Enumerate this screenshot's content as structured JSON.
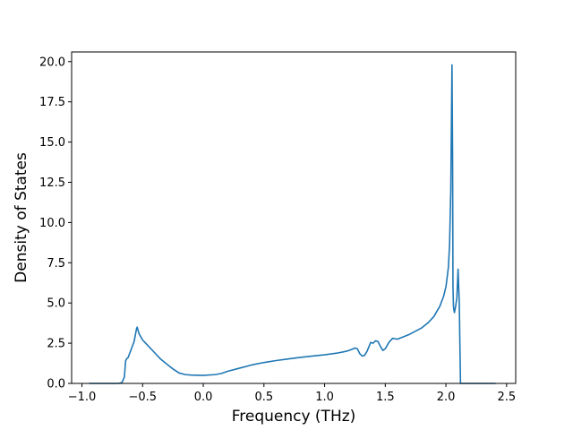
{
  "chart_data": {
    "type": "line",
    "title": "",
    "xlabel": "Frequency (THz)",
    "ylabel": "Density of States",
    "xlim": [
      -1.085,
      2.575
    ],
    "ylim": [
      0,
      20.6
    ],
    "xticks": [
      {
        "value": -1.0,
        "label": "−1.0"
      },
      {
        "value": -0.5,
        "label": "−0.5"
      },
      {
        "value": 0.0,
        "label": "0.0"
      },
      {
        "value": 0.5,
        "label": "0.5"
      },
      {
        "value": 1.0,
        "label": "1.0"
      },
      {
        "value": 1.5,
        "label": "1.5"
      },
      {
        "value": 2.0,
        "label": "2.0"
      },
      {
        "value": 2.5,
        "label": "2.5"
      }
    ],
    "yticks": [
      {
        "value": 0.0,
        "label": "0.0"
      },
      {
        "value": 2.5,
        "label": "2.5"
      },
      {
        "value": 5.0,
        "label": "5.0"
      },
      {
        "value": 7.5,
        "label": "7.5"
      },
      {
        "value": 10.0,
        "label": "10.0"
      },
      {
        "value": 12.5,
        "label": "12.5"
      },
      {
        "value": 15.0,
        "label": "15.0"
      },
      {
        "value": 17.5,
        "label": "17.5"
      },
      {
        "value": 20.0,
        "label": "20.0"
      }
    ],
    "grid": false,
    "legend": "none",
    "series": [
      {
        "color": "#1f77b4",
        "x": [
          -0.94,
          -0.7,
          -0.67,
          -0.65,
          -0.64,
          -0.63,
          -0.62,
          -0.6,
          -0.59,
          -0.57,
          -0.55,
          -0.545,
          -0.53,
          -0.5,
          -0.45,
          -0.4,
          -0.35,
          -0.3,
          -0.25,
          -0.2,
          -0.15,
          -0.1,
          0.0,
          0.1,
          0.15,
          0.2,
          0.3,
          0.4,
          0.5,
          0.6,
          0.7,
          0.8,
          0.9,
          1.0,
          1.1,
          1.18,
          1.22,
          1.25,
          1.27,
          1.29,
          1.31,
          1.33,
          1.35,
          1.38,
          1.4,
          1.42,
          1.44,
          1.46,
          1.48,
          1.5,
          1.53,
          1.56,
          1.6,
          1.7,
          1.8,
          1.85,
          1.9,
          1.95,
          1.98,
          2.0,
          2.02,
          2.03,
          2.04,
          2.05,
          2.055,
          2.058,
          2.062,
          2.065,
          2.07,
          2.08,
          2.09,
          2.1,
          2.11,
          2.12,
          2.125,
          2.13,
          2.135,
          2.14,
          2.2,
          2.3,
          2.41
        ],
        "y": [
          0.0,
          0.0,
          0.05,
          0.4,
          1.4,
          1.55,
          1.6,
          2.0,
          2.2,
          2.6,
          3.4,
          3.5,
          3.1,
          2.7,
          2.3,
          1.9,
          1.5,
          1.2,
          0.9,
          0.65,
          0.55,
          0.52,
          0.5,
          0.55,
          0.62,
          0.75,
          0.95,
          1.15,
          1.3,
          1.42,
          1.52,
          1.62,
          1.7,
          1.78,
          1.88,
          2.0,
          2.1,
          2.2,
          2.15,
          1.85,
          1.7,
          1.75,
          2.0,
          2.55,
          2.5,
          2.65,
          2.6,
          2.3,
          2.05,
          2.15,
          2.55,
          2.8,
          2.75,
          3.05,
          3.45,
          3.75,
          4.15,
          4.8,
          5.4,
          6.0,
          7.2,
          8.6,
          12.0,
          19.8,
          14.0,
          6.0,
          4.8,
          4.6,
          4.4,
          4.8,
          5.3,
          7.1,
          5.0,
          0.0,
          0.0,
          0.0,
          0.0,
          0.0,
          0.0,
          0.0,
          0.0
        ]
      }
    ]
  }
}
